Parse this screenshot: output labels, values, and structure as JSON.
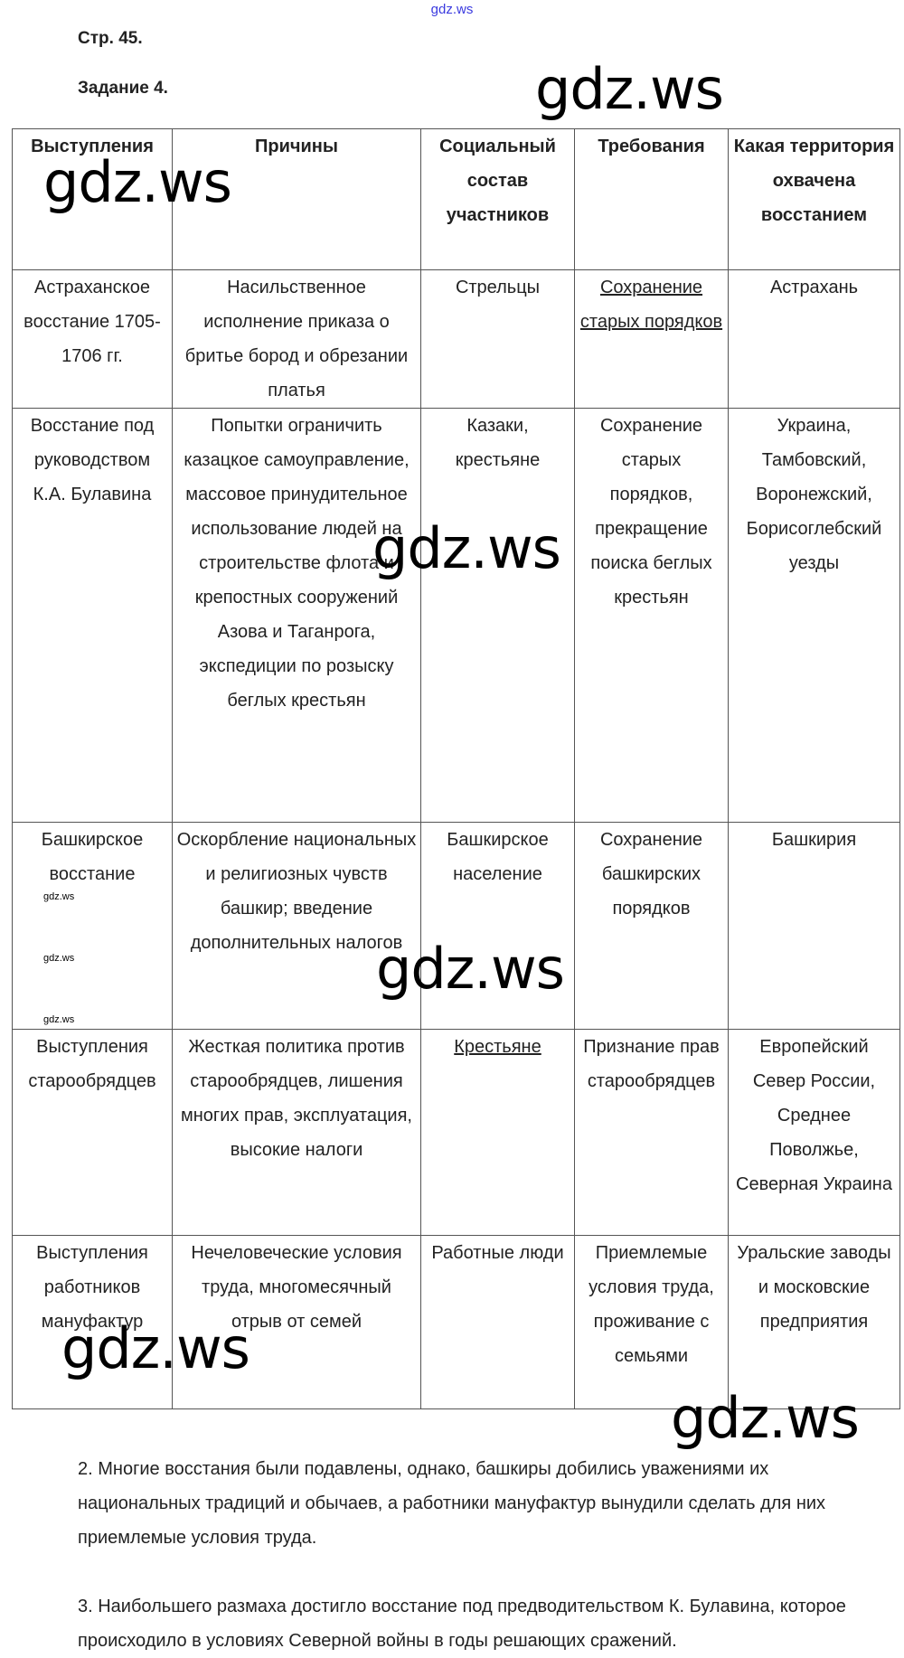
{
  "top_watermark": "gdz.ws",
  "page_label": "Стр. 45.",
  "task_label": "Задание 4.",
  "table": {
    "headers": [
      "Выступления",
      "Причины",
      "Социальный состав участников",
      "Требования",
      "Какая территория охвачена восстанием"
    ],
    "rows": [
      [
        "Астраханское восстание 1705-1706 гг.",
        "Насильственное исполнение приказа о бритье бород и обрезании платья",
        "Стрельцы",
        "Сохранение старых порядков",
        "Астрахань"
      ],
      [
        "Восстание под руководством К.А. Булавина",
        "Попытки ограничить казацкое самоуправление, массовое принудительное использование людей на строительстве флота и крепостных сооружений Азова и Таганрога, экспедиции по розыску беглых крестьян",
        "Казаки, крестьяне",
        "Сохранение старых порядков, прекращение поиска беглых крестьян",
        "Украина, Тамбовский, Воронежский, Борисоглебский уезды"
      ],
      [
        "Башкирское восстание",
        "Оскорбление национальных и религиозных чувств башкир; введение дополнительных налогов",
        "Башкирское население",
        "Сохранение башкирских порядков",
        "Башкирия"
      ],
      [
        "Выступления старообрядцев",
        "Жесткая политика против старообрядцев, лишения многих прав, эксплуатация, высокие налоги",
        "Крестьяне",
        "Признание прав старообрядцев",
        "Европейский Север России, Среднее Поволжье, Северная Украина"
      ],
      [
        "Выступления работников мануфактур",
        "Нечеловеческие условия труда, многомесячный отрыв от семей",
        "Работные люди",
        "Приемлемые условия труда, проживание с семьями",
        "Уральские заводы и московские предприятия"
      ]
    ]
  },
  "answer2": "2. Многие восстания были подавлены, однако, башкиры добились уважениями их национальных традиций и обычаев, а работники мануфактур вынудили сделать для них приемлемые условия труда.",
  "answer3": "3. Наибольшего размаха достигло восстание под предводительством К. Булавина, которое происходило в условиях Северной войны в годы решающих сражений.",
  "watermark": "gdz.ws"
}
